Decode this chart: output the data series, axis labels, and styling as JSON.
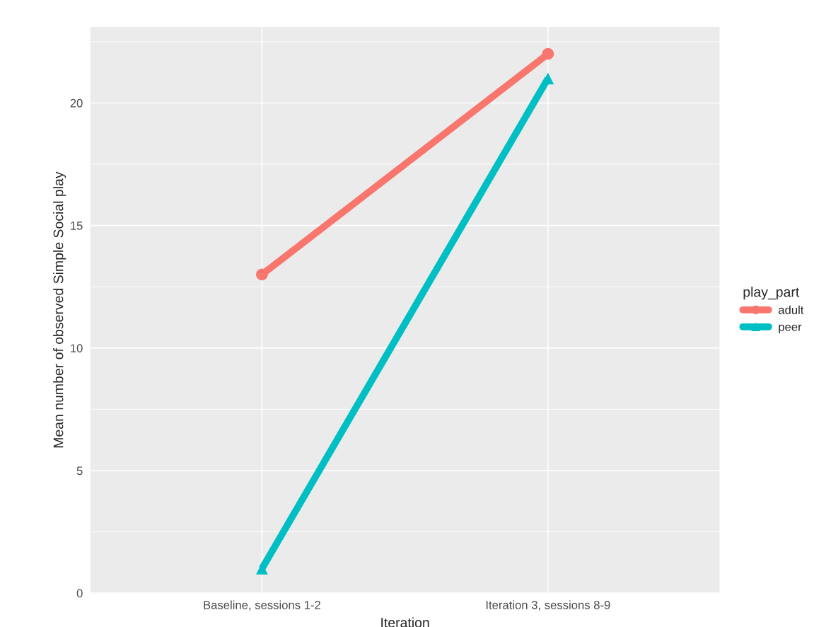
{
  "chart_data": {
    "type": "line",
    "xlabel": "Iteration",
    "ylabel": "Mean number of observed Simple Social play",
    "legend_title": "play_part",
    "categories": [
      "Baseline, sessions 1-2",
      "Iteration 3, sessions 8-9"
    ],
    "series": [
      {
        "name": "adult",
        "color": "#f8766d",
        "values": [
          13,
          22
        ],
        "marker": "circle"
      },
      {
        "name": "peer",
        "color": "#00bfc4",
        "values": [
          1,
          21
        ],
        "marker": "triangle"
      }
    ],
    "ylim": [
      0,
      23.1
    ],
    "yticks": [
      0,
      5,
      10,
      15,
      20
    ],
    "grid": true,
    "legend": "right"
  }
}
